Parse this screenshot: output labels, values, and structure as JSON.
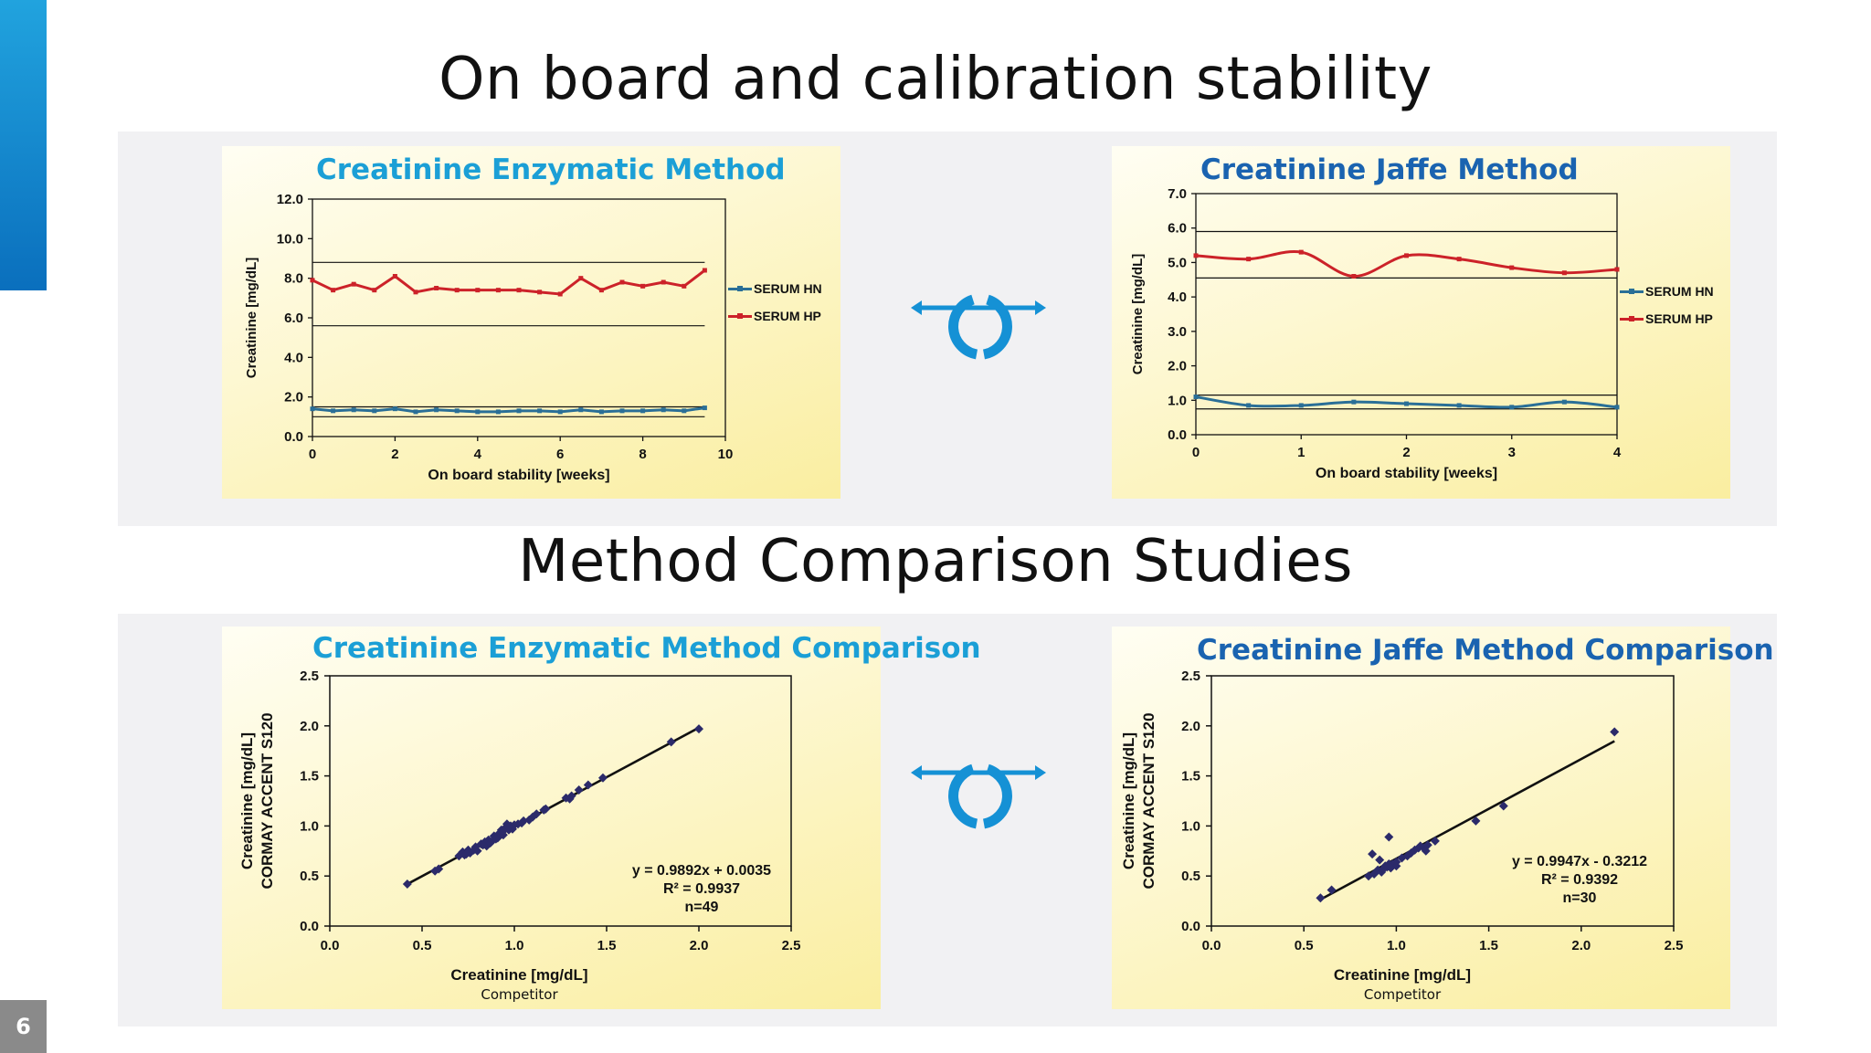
{
  "slide": {
    "page_number": "6",
    "heading_top": "On board and calibration stability",
    "heading_bottom": "Method Comparison Studies"
  },
  "colors": {
    "enzymatic_title": "#1b9fd6",
    "jaffe_title": "#1a63b0",
    "serum_hn": "#2a6f97",
    "serum_hp": "#cc2229",
    "scatter_point": "#2b2a6a",
    "accent": "#1591d5"
  },
  "icons": {
    "middle_top": "circular-arrows-icon",
    "middle_bottom": "circular-arrows-icon"
  },
  "chart_data": [
    {
      "type": "line",
      "title": "Creatinine Enzymatic Method",
      "xlabel": "On board stability [weeks]",
      "ylabel": "Creatinine [mg/dL]",
      "xlim": [
        0,
        10
      ],
      "ylim": [
        0,
        12
      ],
      "xticks": [
        "0",
        "2",
        "4",
        "6",
        "8",
        "10"
      ],
      "yticks": [
        "0.0",
        "2.0",
        "4.0",
        "6.0",
        "8.0",
        "10.0",
        "12.0"
      ],
      "legend_position": "right",
      "reference_lines": [
        1.0,
        1.5,
        5.6,
        8.8
      ],
      "series": [
        {
          "name": "SERUM HN",
          "x": [
            0,
            0.5,
            1,
            1.5,
            2,
            2.5,
            3,
            3.5,
            4,
            4.5,
            5,
            5.5,
            6,
            6.5,
            7,
            7.5,
            8,
            8.5,
            9,
            9.5
          ],
          "values": [
            1.4,
            1.3,
            1.35,
            1.3,
            1.4,
            1.25,
            1.35,
            1.3,
            1.25,
            1.25,
            1.3,
            1.3,
            1.25,
            1.35,
            1.25,
            1.3,
            1.3,
            1.35,
            1.3,
            1.45
          ]
        },
        {
          "name": "SERUM HP",
          "x": [
            0,
            0.5,
            1,
            1.5,
            2,
            2.5,
            3,
            3.5,
            4,
            4.5,
            5,
            5.5,
            6,
            6.5,
            7,
            7.5,
            8,
            8.5,
            9,
            9.5
          ],
          "values": [
            7.9,
            7.4,
            7.7,
            7.4,
            8.1,
            7.3,
            7.5,
            7.4,
            7.4,
            7.4,
            7.4,
            7.3,
            7.2,
            8.0,
            7.4,
            7.8,
            7.6,
            7.8,
            7.6,
            8.4
          ]
        }
      ]
    },
    {
      "type": "line",
      "title": "Creatinine Jaffe Method",
      "xlabel": "On board stability [weeks]",
      "ylabel": "Creatinine [mg/dL]",
      "xlim": [
        0,
        4
      ],
      "ylim": [
        0,
        7
      ],
      "xticks": [
        "0",
        "1",
        "2",
        "3",
        "4"
      ],
      "yticks": [
        "0.0",
        "1.0",
        "2.0",
        "3.0",
        "4.0",
        "5.0",
        "6.0",
        "7.0"
      ],
      "legend_position": "right",
      "reference_lines": [
        0.75,
        1.15,
        4.55,
        5.9
      ],
      "series": [
        {
          "name": "SERUM HN",
          "x": [
            0,
            0.5,
            1,
            1.5,
            2,
            2.5,
            3,
            3.5,
            4
          ],
          "values": [
            1.1,
            0.85,
            0.85,
            0.95,
            0.9,
            0.85,
            0.8,
            0.95,
            0.8
          ]
        },
        {
          "name": "SERUM HP",
          "x": [
            0,
            0.5,
            1,
            1.5,
            2,
            2.5,
            3,
            3.5,
            4
          ],
          "values": [
            5.2,
            5.1,
            5.3,
            4.6,
            5.2,
            5.1,
            4.85,
            4.7,
            4.8
          ]
        }
      ]
    },
    {
      "type": "scatter",
      "title": "Creatinine Enzymatic Method Comparison",
      "xlabel": "Creatinine [mg/dL]",
      "xsublabel": "Competitor",
      "ylabel": [
        "CORMAY ACCENT S120",
        "Creatinine [mg/dL]"
      ],
      "xlim": [
        0,
        2.5
      ],
      "ylim": [
        0,
        2.5
      ],
      "xticks": [
        "0.0",
        "0.5",
        "1.0",
        "1.5",
        "2.0",
        "2.5"
      ],
      "yticks": [
        "0.0",
        "0.5",
        "1.0",
        "1.5",
        "2.0",
        "2.5"
      ],
      "annotation": [
        "y = 0.9892x + 0.0035",
        "R² = 0.9937",
        "n=49"
      ],
      "regression": {
        "slope": 0.9892,
        "intercept": 0.0035,
        "x_range": [
          0.42,
          2.0
        ]
      },
      "points": [
        [
          0.42,
          0.42
        ],
        [
          0.57,
          0.55
        ],
        [
          0.59,
          0.57
        ],
        [
          0.7,
          0.7
        ],
        [
          0.72,
          0.74
        ],
        [
          0.73,
          0.71
        ],
        [
          0.75,
          0.76
        ],
        [
          0.76,
          0.73
        ],
        [
          0.78,
          0.76
        ],
        [
          0.8,
          0.75
        ],
        [
          0.82,
          0.82
        ],
        [
          0.84,
          0.84
        ],
        [
          0.85,
          0.8
        ],
        [
          0.86,
          0.86
        ],
        [
          0.88,
          0.85
        ],
        [
          0.89,
          0.9
        ],
        [
          0.91,
          0.88
        ],
        [
          0.92,
          0.93
        ],
        [
          0.93,
          0.96
        ],
        [
          0.94,
          0.91
        ],
        [
          0.95,
          0.98
        ],
        [
          0.96,
          1.02
        ],
        [
          0.97,
          0.96
        ],
        [
          0.98,
          1.0
        ],
        [
          1.0,
          1.01
        ],
        [
          1.02,
          1.02
        ],
        [
          1.05,
          1.05
        ],
        [
          1.08,
          1.06
        ],
        [
          1.12,
          1.12
        ],
        [
          1.16,
          1.16
        ],
        [
          1.17,
          1.17
        ],
        [
          1.28,
          1.28
        ],
        [
          1.31,
          1.3
        ],
        [
          1.35,
          1.36
        ],
        [
          1.4,
          1.41
        ],
        [
          1.48,
          1.48
        ],
        [
          1.85,
          1.84
        ],
        [
          2.0,
          1.97
        ],
        [
          0.87,
          0.83
        ],
        [
          0.9,
          0.87
        ],
        [
          0.99,
          0.97
        ],
        [
          1.04,
          1.03
        ],
        [
          0.74,
          0.72
        ],
        [
          0.79,
          0.79
        ],
        [
          0.83,
          0.81
        ],
        [
          0.94,
          0.95
        ],
        [
          1.1,
          1.09
        ],
        [
          1.3,
          1.27
        ],
        [
          0.97,
          0.99
        ]
      ]
    },
    {
      "type": "scatter",
      "title": "Creatinine Jaffe Method Comparison",
      "xlabel": "Creatinine  [mg/dL]",
      "xsublabel": "Competitor",
      "ylabel": [
        "CORMAY ACCENT S120",
        "Creatinine [mg/dL]"
      ],
      "xlim": [
        0,
        2.5
      ],
      "ylim": [
        0,
        2.5
      ],
      "xticks": [
        "0.0",
        "0.5",
        "1.0",
        "1.5",
        "2.0",
        "2.5"
      ],
      "yticks": [
        "0.0",
        "0.5",
        "1.0",
        "1.5",
        "2.0",
        "2.5"
      ],
      "annotation": [
        "y = 0.9947x - 0.3212",
        "R² = 0.9392",
        "n=30"
      ],
      "regression": {
        "slope": 0.9947,
        "intercept": -0.3212,
        "x_range": [
          0.58,
          2.18
        ]
      },
      "points": [
        [
          0.59,
          0.28
        ],
        [
          0.65,
          0.36
        ],
        [
          0.85,
          0.5
        ],
        [
          0.87,
          0.72
        ],
        [
          0.88,
          0.52
        ],
        [
          0.9,
          0.56
        ],
        [
          0.91,
          0.66
        ],
        [
          0.92,
          0.54
        ],
        [
          0.93,
          0.57
        ],
        [
          0.95,
          0.59
        ],
        [
          0.96,
          0.62
        ],
        [
          0.96,
          0.89
        ],
        [
          0.98,
          0.62
        ],
        [
          1.0,
          0.6
        ],
        [
          1.03,
          0.68
        ],
        [
          1.06,
          0.7
        ],
        [
          1.1,
          0.76
        ],
        [
          1.12,
          0.78
        ],
        [
          1.15,
          0.78
        ],
        [
          1.17,
          0.81
        ],
        [
          1.21,
          0.85
        ],
        [
          1.43,
          1.05
        ],
        [
          1.58,
          1.2
        ],
        [
          2.18,
          1.94
        ],
        [
          0.97,
          0.58
        ],
        [
          1.0,
          0.64
        ],
        [
          1.08,
          0.73
        ],
        [
          1.13,
          0.8
        ],
        [
          1.16,
          0.75
        ],
        [
          0.94,
          0.6
        ]
      ]
    }
  ]
}
